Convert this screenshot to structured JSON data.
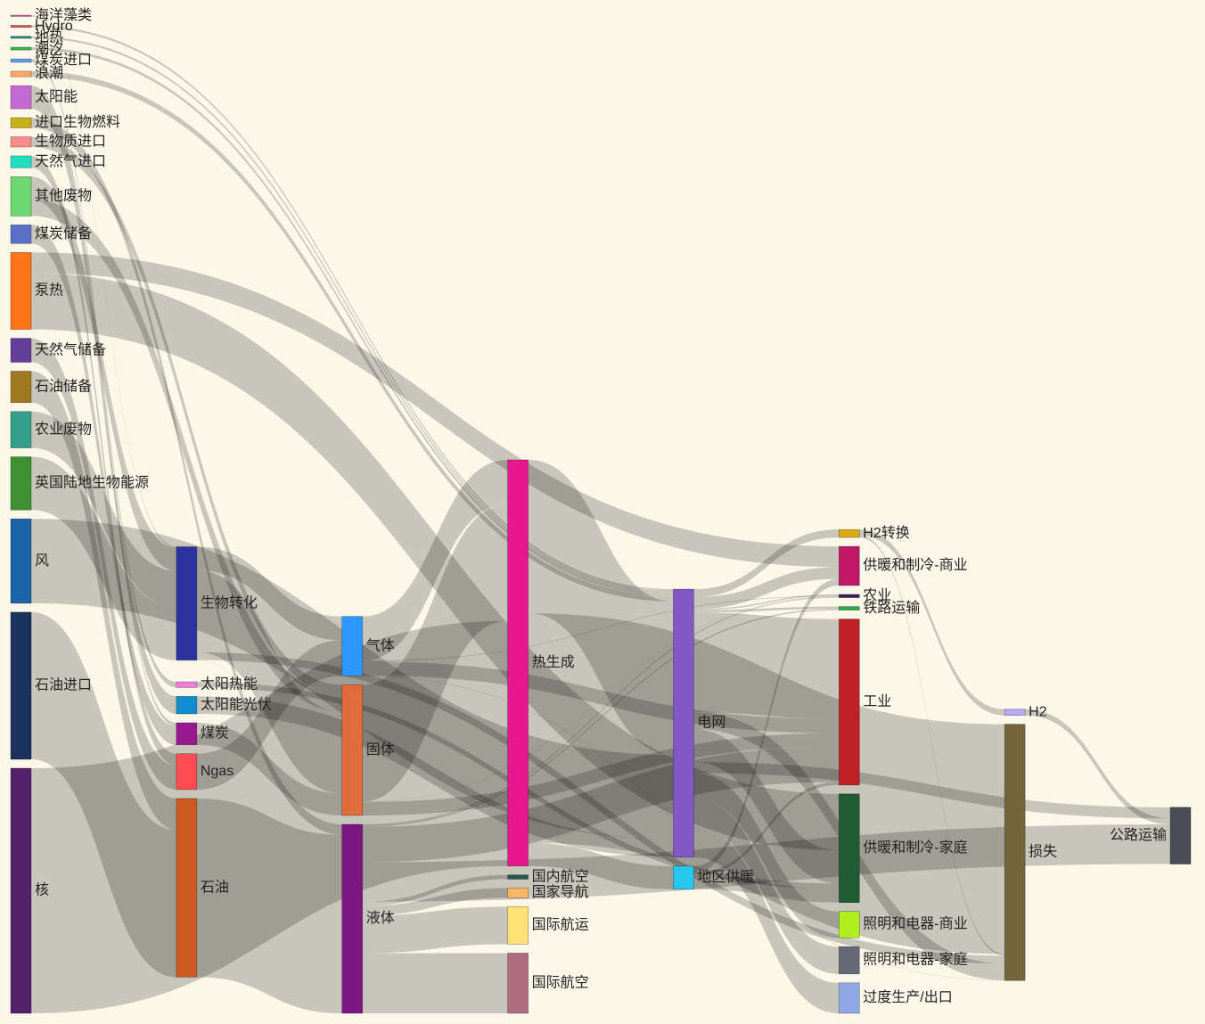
{
  "chart_data": {
    "type": "sankey",
    "nodes": {
      "labels": [
        "海洋藻类",
        "Hydro",
        "地热",
        "潮汐",
        "煤炭进口",
        "浪潮",
        "太阳能",
        "进口生物燃料",
        "生物质进口",
        "天然气进口",
        "其他废物",
        "煤炭储备",
        "泵热",
        "天然气储备",
        "石油储备",
        "农业废物",
        "英国陆地生物能源",
        "风",
        "石油进口",
        "核",
        "生物转化",
        "太阳热能",
        "太阳能光伏",
        "煤炭",
        "Ngas",
        "石油",
        "气体",
        "固体",
        "液体",
        "热生成",
        "国内航空",
        "国家导航",
        "国际航运",
        "国际航空",
        "电网",
        "地区供暖",
        "H2转换",
        "供暖和制冷-商业",
        "农业",
        "铁路运输",
        "工业",
        "供暖和制冷-家庭",
        "照明和电器-商业",
        "照明和电器-家庭",
        "过度生产/出口",
        "H2",
        "损失",
        "公路运输"
      ],
      "colors": [
        "#dd4fa5",
        "#d9565f",
        "#2b8585",
        "#3cb44b",
        "#5b9df5",
        "#ffa866",
        "#c56ad1",
        "#c8b01a",
        "#ff8c8c",
        "#1de0c0",
        "#6cd870",
        "#5a70c8",
        "#ff7518",
        "#663d99",
        "#a0781f",
        "#34a08c",
        "#3e9234",
        "#1a63a8",
        "#1b325e",
        "#54206a",
        "#2a339e",
        "#f07ed8",
        "#138ccf",
        "#99188f",
        "#ff4d52",
        "#cd5a20",
        "#2c97ff",
        "#e06c3c",
        "#7b1682",
        "#e8168f",
        "#25574f",
        "#ffb566",
        "#ffe278",
        "#ad6c7e",
        "#8358c6",
        "#26c6ee",
        "#d9aa12",
        "#c0166a",
        "#3d1f5e",
        "#2aaa48",
        "#bf2127",
        "#1f5c31",
        "#b1f01c",
        "#636a75",
        "#8ea8e6",
        "#b8a8f8",
        "#73663a",
        "#4a4d55"
      ]
    },
    "links": {
      "source": [
        15,
        20,
        20,
        20,
        20,
        7,
        8,
        4,
        11,
        23,
        35,
        35,
        35,
        34,
        34,
        34,
        34,
        34,
        34,
        34,
        34,
        34,
        34,
        34,
        9,
        13,
        26,
        26,
        26,
        26,
        26,
        2,
        36,
        36,
        45,
        1,
        28,
        28,
        28,
        28,
        28,
        28,
        28,
        28,
        0,
        24,
        19,
        18,
        14,
        25,
        10,
        10,
        12,
        12,
        22,
        21,
        6,
        6,
        27,
        27,
        27,
        29,
        29,
        29,
        3,
        16,
        5,
        17
      ],
      "target": [
        20,
        28,
        46,
        27,
        26,
        28,
        27,
        23,
        23,
        27,
        40,
        37,
        41,
        44,
        41,
        36,
        40,
        47,
        38,
        37,
        46,
        39,
        42,
        43,
        24,
        24,
        37,
        46,
        29,
        38,
        40,
        34,
        45,
        46,
        47,
        34,
        40,
        32,
        47,
        30,
        33,
        38,
        31,
        39,
        20,
        26,
        29,
        25,
        25,
        28,
        27,
        20,
        41,
        37,
        34,
        41,
        21,
        22,
        38,
        29,
        40,
        34,
        46,
        35,
        34,
        20,
        34,
        34
      ],
      "values": [
        124.729,
        0.597,
        26.862,
        280.322,
        81.144,
        35,
        35,
        11.606,
        63.965,
        75.571,
        10.639,
        22.505,
        46.184,
        104.453,
        113.726,
        27.14,
        342.165,
        37.797,
        4.412,
        40.858,
        56.691,
        7.863,
        90.008,
        93.494,
        40.719,
        82.233,
        0.129,
        1.401,
        151.891,
        2.096,
        48.58,
        7.013,
        20.897,
        6.242,
        20.897,
        6.995,
        121.066,
        128.69,
        135.835,
        14.458,
        206.267,
        3.64,
        33.218,
        4.413,
        4.375,
        122.952,
        839.978,
        504.287,
        107.703,
        611.99,
        56.587,
        77.81,
        193.026,
        70.672,
        59.901,
        19.263,
        19.263,
        59.901,
        0.882,
        400.12,
        46.477,
        525.531,
        787.129,
        79.329,
        9.452,
        182.01,
        19.013,
        289.366
      ]
    },
    "link_color": "rgba(0,0,0,0.2)"
  }
}
